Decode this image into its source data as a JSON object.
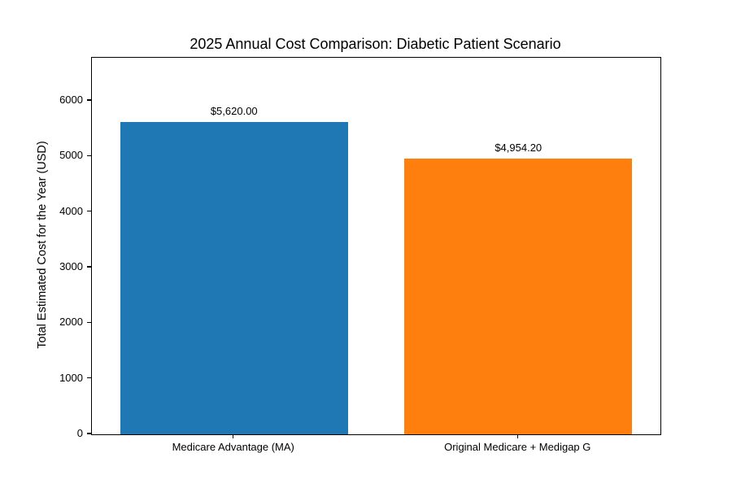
{
  "chart_data": {
    "type": "bar",
    "title": "2025 Annual Cost Comparison: Diabetic Patient Scenario",
    "ylabel": "Total Estimated Cost for the Year (USD)",
    "xlabel": "",
    "categories": [
      "Medicare Advantage (MA)",
      "Original Medicare + Medigap G"
    ],
    "values": [
      5620.0,
      4954.2
    ],
    "value_labels": [
      "$5,620.00",
      "$4,954.20"
    ],
    "bar_colors": [
      "#1f77b4",
      "#ff7f0e"
    ],
    "ylim": [
      0,
      6776
    ],
    "yticks": [
      "0",
      "1000",
      "2000",
      "3000",
      "4000",
      "5000",
      "6000"
    ],
    "grid": false,
    "legend": "none",
    "background_color": "#ffffff",
    "spine_color": "#000000",
    "text_color": "#000000"
  }
}
